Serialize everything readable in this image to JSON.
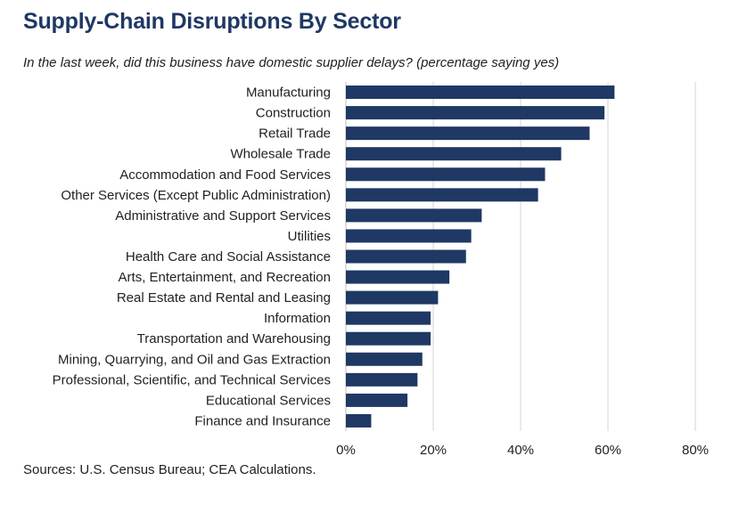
{
  "chart_data": {
    "type": "bar",
    "orientation": "horizontal",
    "title": "Supply-Chain Disruptions By Sector",
    "subtitle": "In the last week, did this business have domestic supplier delays? (percentage saying yes)",
    "source": "Sources: U.S. Census Bureau; CEA Calculations.",
    "categories": [
      "Manufacturing",
      "Construction",
      "Retail Trade",
      "Wholesale Trade",
      "Accommodation and Food Services",
      "Other Services (Except Public Administration)",
      "Administrative and Support Services",
      "Utilities",
      "Health Care and Social Assistance",
      "Arts, Entertainment, and Recreation",
      "Real Estate and Rental and Leasing",
      "Information",
      "Transportation and Warehousing",
      "Mining, Quarrying, and Oil and Gas Extraction",
      "Professional, Scientific, and Technical Services",
      "Educational Services",
      "Finance and Insurance"
    ],
    "values": [
      61.5,
      59.2,
      55.8,
      49.3,
      45.6,
      44.0,
      31.1,
      28.7,
      27.5,
      23.7,
      21.1,
      19.4,
      19.4,
      17.5,
      16.4,
      14.1,
      5.8
    ],
    "xlim": [
      0,
      80
    ],
    "xticks": [
      0,
      20,
      40,
      60,
      80
    ],
    "xtick_labels": [
      "0%",
      "20%",
      "40%",
      "60%",
      "80%"
    ],
    "grid": "vertical",
    "bar_color": "#1f3864"
  }
}
